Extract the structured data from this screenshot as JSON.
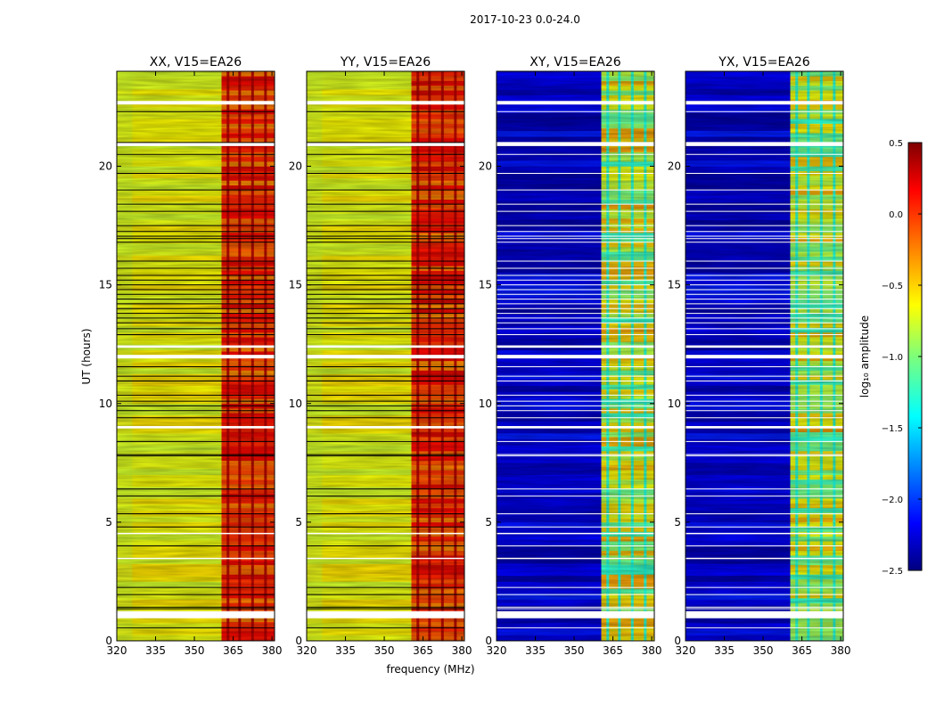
{
  "suptitle": "2017-10-23 0.0-24.0",
  "xlabel": "frequency (MHz)",
  "ylabel": "UT (hours)",
  "chart_data": {
    "type": "heatmap",
    "x_range": [
      320,
      381
    ],
    "y_range": [
      0,
      24
    ],
    "x_ticks": [
      "320",
      "335",
      "350",
      "365",
      "380"
    ],
    "x_tick_values": [
      320,
      335,
      350,
      365,
      380
    ],
    "y_ticks": [
      "0",
      "5",
      "10",
      "15",
      "20"
    ],
    "y_tick_values": [
      0,
      5,
      10,
      15,
      20
    ],
    "rfi_band_mhz": [
      360.5,
      381
    ],
    "rfi_columns_mhz": [
      363,
      367.5,
      372.5,
      377.5
    ],
    "panels": [
      {
        "title": "XX, V15=EA26",
        "kind": "parallel",
        "base_log_amp": -0.65
      },
      {
        "title": "YY, V15=EA26",
        "kind": "parallel",
        "base_log_amp": -0.65
      },
      {
        "title": "XY, V15=EA26",
        "kind": "cross",
        "base_log_amp": -2.2
      },
      {
        "title": "YX, V15=EA26",
        "kind": "cross",
        "base_log_amp": -2.2
      }
    ],
    "flagged_gaps_hours": [
      [
        0.95,
        1.25
      ],
      [
        3.45,
        3.5
      ],
      [
        4.5,
        4.55
      ],
      [
        8.95,
        9.05
      ],
      [
        11.9,
        12.05
      ],
      [
        12.35,
        12.45
      ],
      [
        20.85,
        21.0
      ],
      [
        22.6,
        22.75
      ]
    ],
    "black_lines_hours": [
      0.55,
      1.35,
      1.42,
      1.95,
      2.25,
      4.0,
      4.8,
      5.35,
      6.1,
      6.4,
      7.8,
      7.85,
      8.4,
      9.4,
      9.7,
      9.9,
      10.1,
      10.35,
      10.95,
      11.15,
      11.55,
      12.9,
      13.15,
      13.4,
      13.6,
      13.8,
      14.0,
      14.2,
      14.4,
      14.6,
      14.8,
      15.0,
      15.2,
      15.4,
      15.7,
      16.0,
      16.8,
      16.95,
      17.05,
      17.25,
      17.5,
      18.1,
      18.4,
      19.0,
      19.7,
      20.5,
      21.0,
      22.3
    ],
    "colorbar": {
      "label": "log₁₀ amplitude",
      "range": [
        -2.5,
        0.5
      ],
      "ticks": [
        "0.5",
        "0.0",
        "−0.5",
        "−1.0",
        "−1.5",
        "−2.0",
        "−2.5"
      ],
      "tick_values": [
        0.5,
        0.0,
        -0.5,
        -1.0,
        -1.5,
        -2.0,
        -2.5
      ],
      "colormap": "jet"
    }
  }
}
